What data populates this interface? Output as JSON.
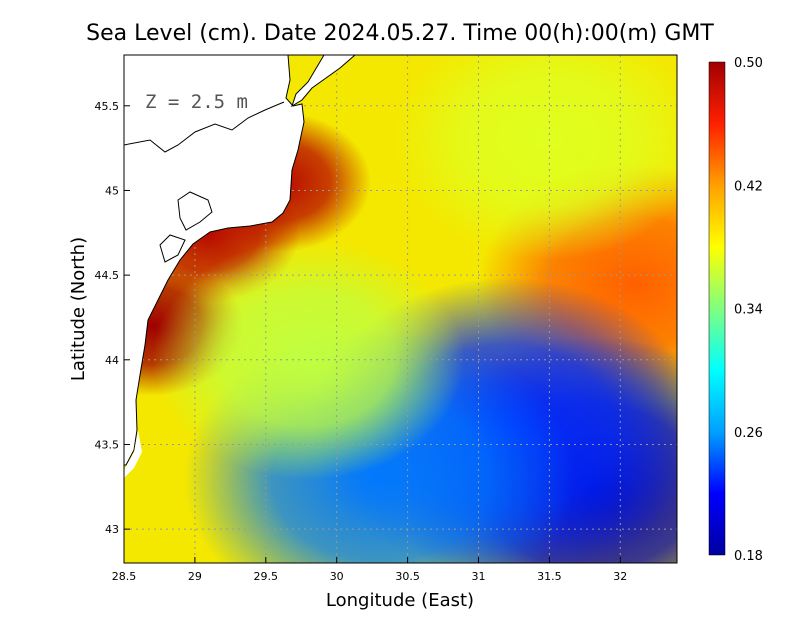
{
  "chart_data": {
    "type": "heatmap",
    "title": "Sea Level (cm). Date 2024.05.27. Time 00(h):00(m) GMT",
    "xlabel": "Longitude (East)",
    "ylabel": "Latitude (North)",
    "annotation": "Z = 2.5 m",
    "xlim": [
      28.5,
      32.4
    ],
    "ylim": [
      42.8,
      45.8
    ],
    "x_ticks": [
      28.5,
      29,
      29.5,
      30,
      30.5,
      31,
      31.5,
      32
    ],
    "x_tick_labels": [
      "28.5",
      "29",
      "29.5",
      "30",
      "30.5",
      "31",
      "31.5",
      "32"
    ],
    "y_ticks": [
      43,
      43.5,
      44,
      44.5,
      45,
      45.5
    ],
    "y_tick_labels": [
      "43",
      "43.5",
      "44",
      "44.5",
      "45",
      "45.5"
    ],
    "grid": true,
    "colorbar": {
      "min": 0.18,
      "max": 0.5,
      "ticks": [
        0.5,
        0.42,
        0.34,
        0.26,
        0.18
      ],
      "tick_labels": [
        "0.50",
        "0.42",
        "0.34",
        "0.26",
        "0.18"
      ],
      "colormap": [
        "#0000a0",
        "#0000ff",
        "#00a0ff",
        "#00ffff",
        "#80ff80",
        "#ffff00",
        "#ffa000",
        "#ff2000",
        "#a00000"
      ]
    },
    "features": [
      {
        "name": "coastal high (west coast)",
        "lon": 28.7,
        "lat": 44.2,
        "value": 0.5
      },
      {
        "name": "coastal high (Danube shelf)",
        "lon": 29.1,
        "lat": 44.75,
        "value": 0.49
      },
      {
        "name": "coastal high (north)",
        "lon": 29.6,
        "lat": 45.05,
        "value": 0.49
      },
      {
        "name": "eastern eddy",
        "lon": 32.1,
        "lat": 44.45,
        "value": 0.44
      },
      {
        "name": "southern low",
        "lon": 31.8,
        "lat": 43.25,
        "value": 0.19
      },
      {
        "name": "south-central low",
        "lon": 31.2,
        "lat": 43.6,
        "value": 0.23
      },
      {
        "name": "southwest low",
        "lon": 30.3,
        "lat": 43.3,
        "value": 0.25
      },
      {
        "name": "northeast basin",
        "lon": 31.5,
        "lat": 45.3,
        "value": 0.37
      },
      {
        "name": "west-central interior",
        "lon": 29.8,
        "lat": 44.0,
        "value": 0.36
      }
    ]
  }
}
